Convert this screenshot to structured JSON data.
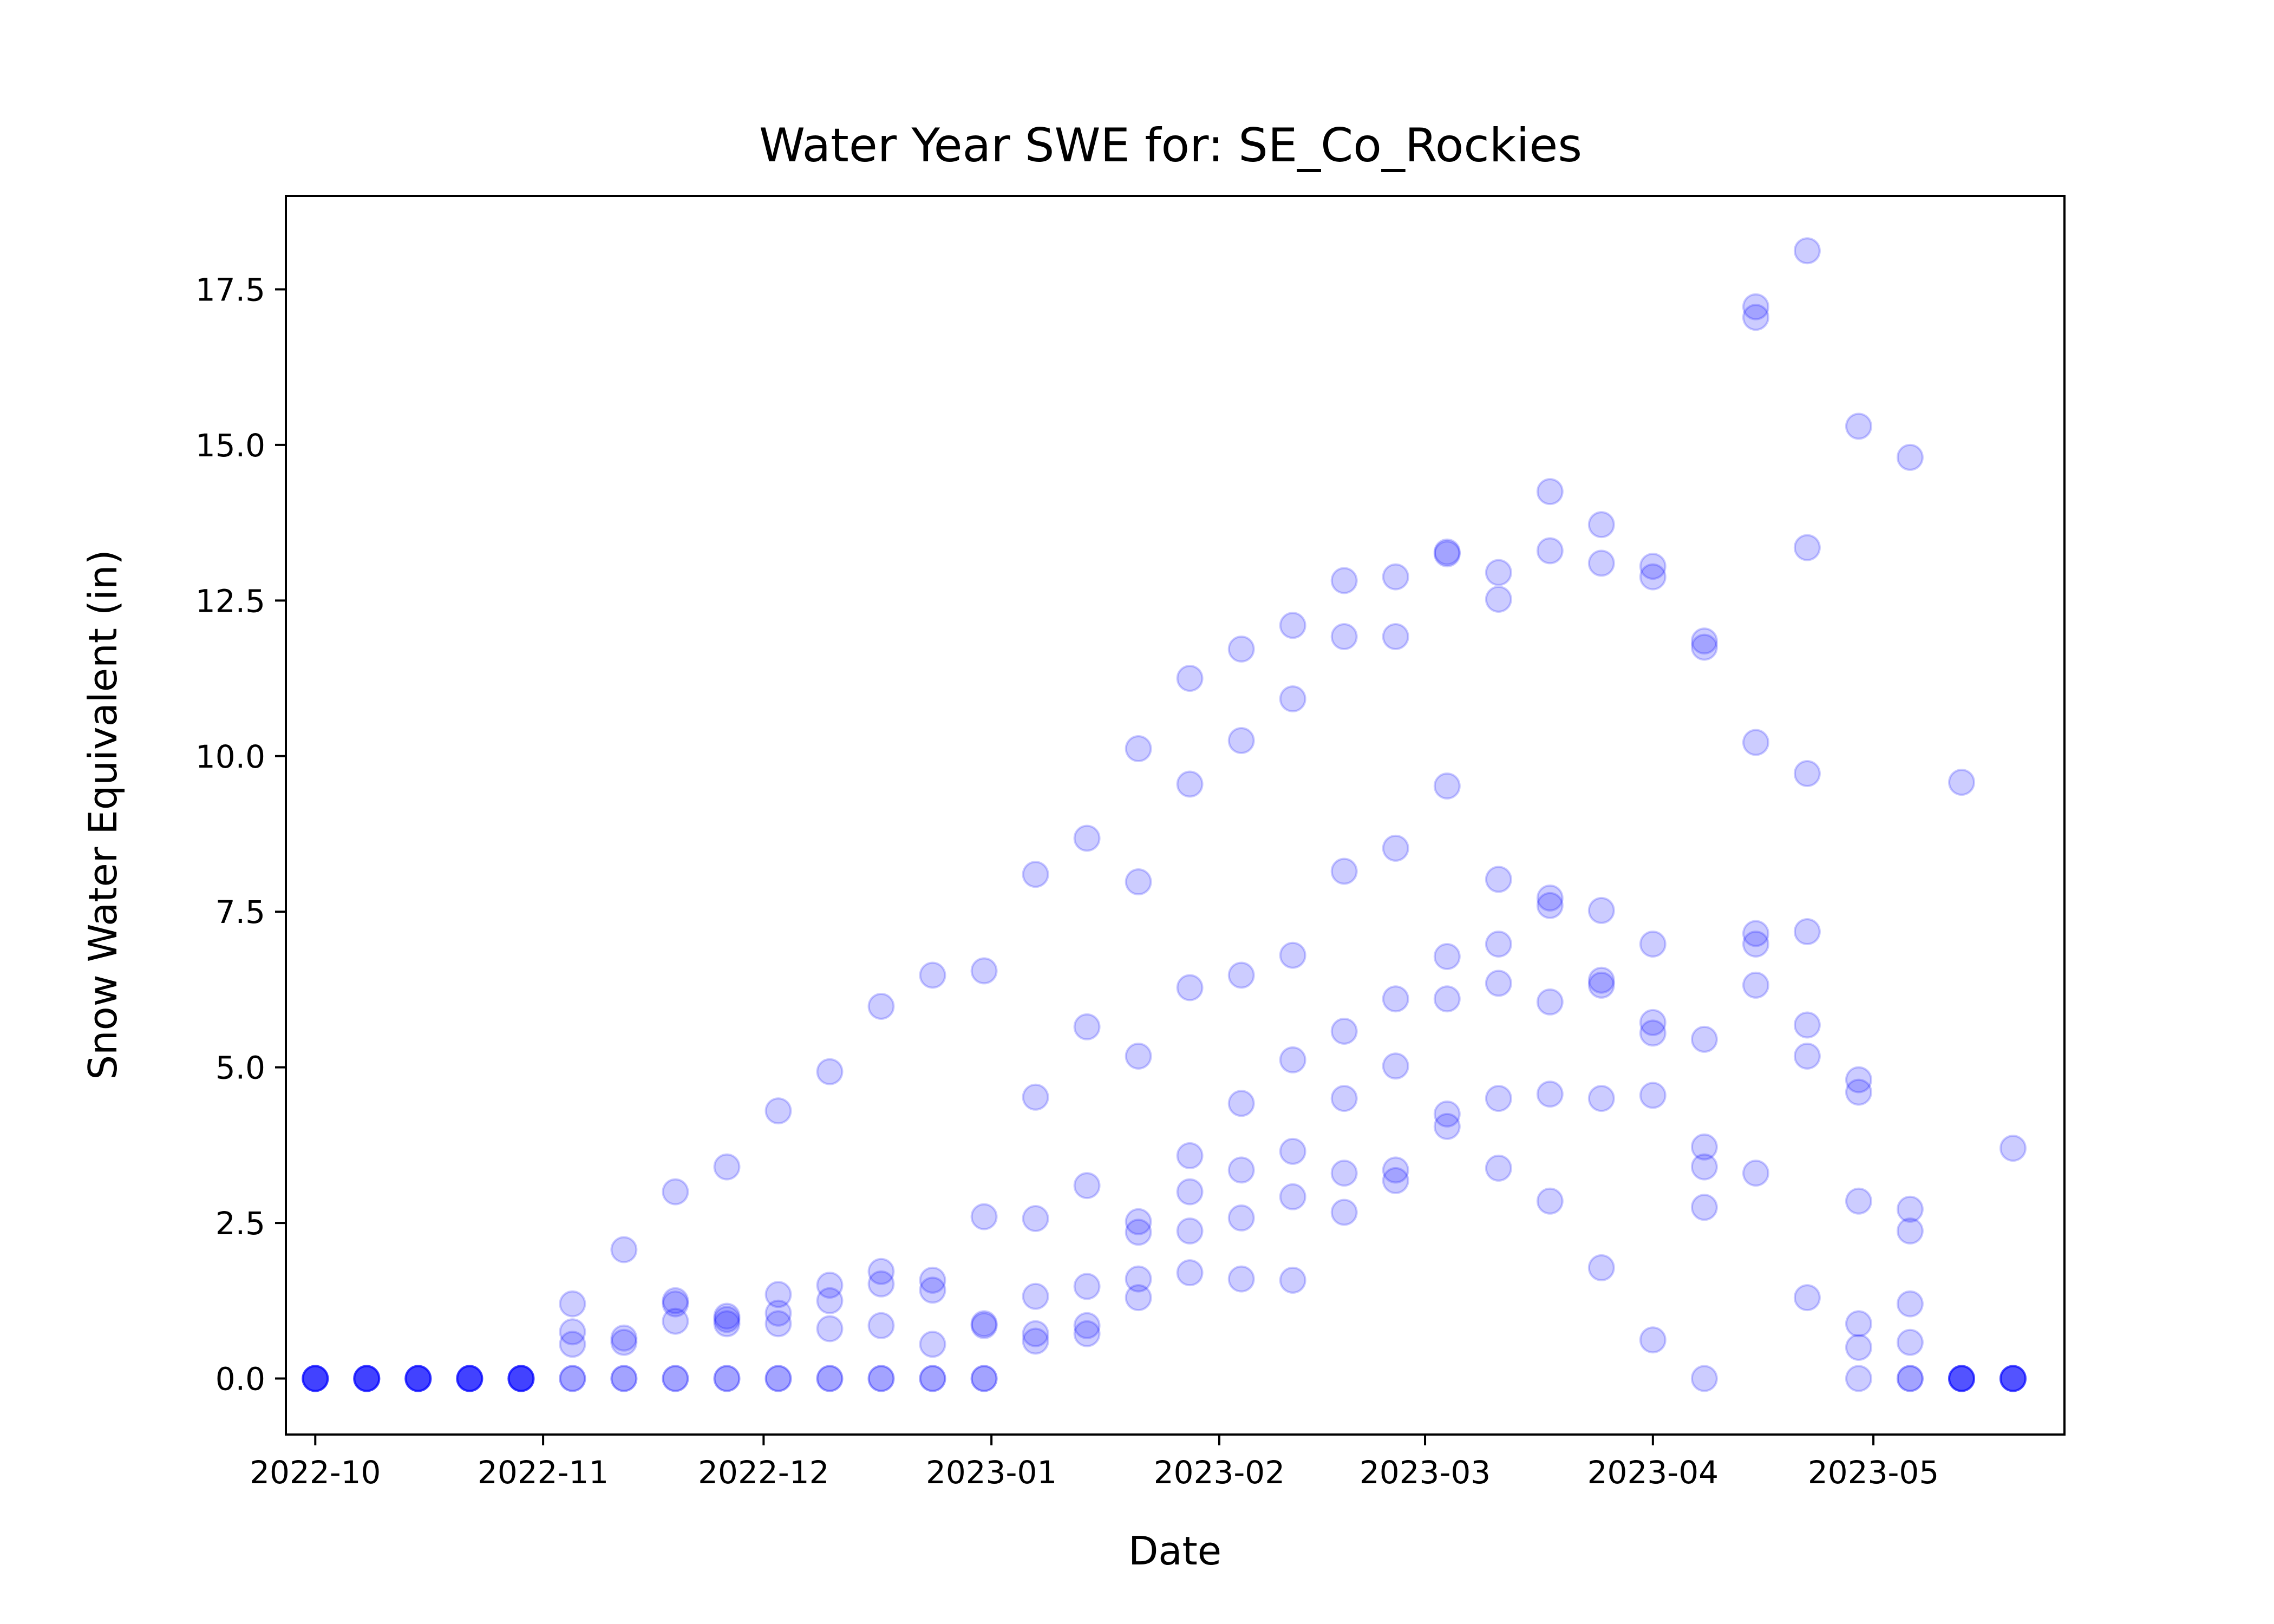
{
  "chart_data": {
    "type": "scatter",
    "title": "Water Year SWE for: SE_Co_Rockies",
    "xlabel": "Date",
    "ylabel": "Snow Water Equivalent (in)",
    "x_type": "date",
    "xlim": [
      "2022-09-27",
      "2023-05-27"
    ],
    "ylim": [
      -0.9,
      19.0
    ],
    "x_ticks": [
      "2022-10-01",
      "2022-11-01",
      "2022-12-01",
      "2023-01-01",
      "2023-02-01",
      "2023-03-01",
      "2023-04-01",
      "2023-05-01"
    ],
    "x_tick_labels": [
      "2022-10",
      "2022-11",
      "2022-12",
      "2023-01",
      "2023-02",
      "2023-03",
      "2023-04",
      "2023-05"
    ],
    "y_ticks": [
      0.0,
      2.5,
      5.0,
      7.5,
      10.0,
      12.5,
      15.0,
      17.5
    ],
    "y_tick_labels": [
      "0.0",
      "2.5",
      "5.0",
      "7.5",
      "10.0",
      "12.5",
      "15.0",
      "17.5"
    ],
    "grid": false,
    "marker_color": "#0000ff",
    "marker_alpha": 0.2,
    "points": [
      {
        "x": "2022-10-01",
        "y": 0.0
      },
      {
        "x": "2022-10-01",
        "y": 0.0
      },
      {
        "x": "2022-10-01",
        "y": 0.0
      },
      {
        "x": "2022-10-01",
        "y": 0.0
      },
      {
        "x": "2022-10-01",
        "y": 0.0
      },
      {
        "x": "2022-10-01",
        "y": 0.0
      },
      {
        "x": "2022-10-08",
        "y": 0.0
      },
      {
        "x": "2022-10-08",
        "y": 0.0
      },
      {
        "x": "2022-10-08",
        "y": 0.0
      },
      {
        "x": "2022-10-08",
        "y": 0.0
      },
      {
        "x": "2022-10-08",
        "y": 0.0
      },
      {
        "x": "2022-10-08",
        "y": 0.0
      },
      {
        "x": "2022-10-15",
        "y": 0.0
      },
      {
        "x": "2022-10-15",
        "y": 0.0
      },
      {
        "x": "2022-10-15",
        "y": 0.0
      },
      {
        "x": "2022-10-15",
        "y": 0.0
      },
      {
        "x": "2022-10-15",
        "y": 0.0
      },
      {
        "x": "2022-10-15",
        "y": 0.0
      },
      {
        "x": "2022-10-22",
        "y": 0.0
      },
      {
        "x": "2022-10-22",
        "y": 0.0
      },
      {
        "x": "2022-10-22",
        "y": 0.0
      },
      {
        "x": "2022-10-22",
        "y": 0.0
      },
      {
        "x": "2022-10-22",
        "y": 0.0
      },
      {
        "x": "2022-10-22",
        "y": 0.0
      },
      {
        "x": "2022-10-29",
        "y": 0.0
      },
      {
        "x": "2022-10-29",
        "y": 0.0
      },
      {
        "x": "2022-10-29",
        "y": 0.0
      },
      {
        "x": "2022-10-29",
        "y": 0.0
      },
      {
        "x": "2022-10-29",
        "y": 0.0
      },
      {
        "x": "2022-10-29",
        "y": 0.0
      },
      {
        "x": "2022-11-05",
        "y": 1.2
      },
      {
        "x": "2022-11-05",
        "y": 0.75
      },
      {
        "x": "2022-11-05",
        "y": 0.55
      },
      {
        "x": "2022-11-05",
        "y": 0.0
      },
      {
        "x": "2022-11-05",
        "y": 0.0
      },
      {
        "x": "2022-11-12",
        "y": 2.07
      },
      {
        "x": "2022-11-12",
        "y": 0.65
      },
      {
        "x": "2022-11-12",
        "y": 0.58
      },
      {
        "x": "2022-11-12",
        "y": 0.0
      },
      {
        "x": "2022-11-12",
        "y": 0.0
      },
      {
        "x": "2022-11-19",
        "y": 3.0
      },
      {
        "x": "2022-11-19",
        "y": 1.25
      },
      {
        "x": "2022-11-19",
        "y": 1.2
      },
      {
        "x": "2022-11-19",
        "y": 0.92
      },
      {
        "x": "2022-11-19",
        "y": 0.0
      },
      {
        "x": "2022-11-19",
        "y": 0.0
      },
      {
        "x": "2022-11-26",
        "y": 3.4
      },
      {
        "x": "2022-11-26",
        "y": 1.0
      },
      {
        "x": "2022-11-26",
        "y": 0.95
      },
      {
        "x": "2022-11-26",
        "y": 0.88
      },
      {
        "x": "2022-11-26",
        "y": 0.0
      },
      {
        "x": "2022-11-26",
        "y": 0.0
      },
      {
        "x": "2022-12-03",
        "y": 4.3
      },
      {
        "x": "2022-12-03",
        "y": 1.35
      },
      {
        "x": "2022-12-03",
        "y": 1.05
      },
      {
        "x": "2022-12-03",
        "y": 0.88
      },
      {
        "x": "2022-12-03",
        "y": 0.0
      },
      {
        "x": "2022-12-03",
        "y": 0.0
      },
      {
        "x": "2022-12-10",
        "y": 4.93
      },
      {
        "x": "2022-12-10",
        "y": 1.5
      },
      {
        "x": "2022-12-10",
        "y": 1.25
      },
      {
        "x": "2022-12-10",
        "y": 0.8
      },
      {
        "x": "2022-12-10",
        "y": 0.0
      },
      {
        "x": "2022-12-10",
        "y": 0.0
      },
      {
        "x": "2022-12-17",
        "y": 5.98
      },
      {
        "x": "2022-12-17",
        "y": 1.72
      },
      {
        "x": "2022-12-17",
        "y": 1.52
      },
      {
        "x": "2022-12-17",
        "y": 0.85
      },
      {
        "x": "2022-12-17",
        "y": 0.0
      },
      {
        "x": "2022-12-17",
        "y": 0.0
      },
      {
        "x": "2022-12-24",
        "y": 6.48
      },
      {
        "x": "2022-12-24",
        "y": 1.58
      },
      {
        "x": "2022-12-24",
        "y": 1.42
      },
      {
        "x": "2022-12-24",
        "y": 0.55
      },
      {
        "x": "2022-12-24",
        "y": 0.0
      },
      {
        "x": "2022-12-24",
        "y": 0.0
      },
      {
        "x": "2022-12-31",
        "y": 6.55
      },
      {
        "x": "2022-12-31",
        "y": 2.6
      },
      {
        "x": "2022-12-31",
        "y": 0.88
      },
      {
        "x": "2022-12-31",
        "y": 0.85
      },
      {
        "x": "2022-12-31",
        "y": 0.0
      },
      {
        "x": "2022-12-31",
        "y": 0.0
      },
      {
        "x": "2023-01-07",
        "y": 8.1
      },
      {
        "x": "2023-01-07",
        "y": 4.52
      },
      {
        "x": "2023-01-07",
        "y": 2.57
      },
      {
        "x": "2023-01-07",
        "y": 1.32
      },
      {
        "x": "2023-01-07",
        "y": 0.72
      },
      {
        "x": "2023-01-07",
        "y": 0.6
      },
      {
        "x": "2023-01-14",
        "y": 8.68
      },
      {
        "x": "2023-01-14",
        "y": 5.65
      },
      {
        "x": "2023-01-14",
        "y": 3.1
      },
      {
        "x": "2023-01-14",
        "y": 1.48
      },
      {
        "x": "2023-01-14",
        "y": 0.85
      },
      {
        "x": "2023-01-14",
        "y": 0.72
      },
      {
        "x": "2023-01-21",
        "y": 10.12
      },
      {
        "x": "2023-01-21",
        "y": 7.98
      },
      {
        "x": "2023-01-21",
        "y": 5.18
      },
      {
        "x": "2023-01-21",
        "y": 2.52
      },
      {
        "x": "2023-01-21",
        "y": 2.35
      },
      {
        "x": "2023-01-21",
        "y": 1.6
      },
      {
        "x": "2023-01-21",
        "y": 1.3
      },
      {
        "x": "2023-01-28",
        "y": 11.25
      },
      {
        "x": "2023-01-28",
        "y": 9.55
      },
      {
        "x": "2023-01-28",
        "y": 6.28
      },
      {
        "x": "2023-01-28",
        "y": 3.58
      },
      {
        "x": "2023-01-28",
        "y": 3.0
      },
      {
        "x": "2023-01-28",
        "y": 2.37
      },
      {
        "x": "2023-01-28",
        "y": 1.7
      },
      {
        "x": "2023-02-04",
        "y": 11.72
      },
      {
        "x": "2023-02-04",
        "y": 10.25
      },
      {
        "x": "2023-02-04",
        "y": 6.48
      },
      {
        "x": "2023-02-04",
        "y": 4.42
      },
      {
        "x": "2023-02-04",
        "y": 3.35
      },
      {
        "x": "2023-02-04",
        "y": 2.58
      },
      {
        "x": "2023-02-04",
        "y": 1.6
      },
      {
        "x": "2023-02-11",
        "y": 12.1
      },
      {
        "x": "2023-02-11",
        "y": 10.92
      },
      {
        "x": "2023-02-11",
        "y": 6.8
      },
      {
        "x": "2023-02-11",
        "y": 5.12
      },
      {
        "x": "2023-02-11",
        "y": 3.65
      },
      {
        "x": "2023-02-11",
        "y": 2.92
      },
      {
        "x": "2023-02-11",
        "y": 1.58
      },
      {
        "x": "2023-02-18",
        "y": 12.82
      },
      {
        "x": "2023-02-18",
        "y": 11.92
      },
      {
        "x": "2023-02-18",
        "y": 8.15
      },
      {
        "x": "2023-02-18",
        "y": 5.58
      },
      {
        "x": "2023-02-18",
        "y": 4.5
      },
      {
        "x": "2023-02-18",
        "y": 3.3
      },
      {
        "x": "2023-02-18",
        "y": 2.67
      },
      {
        "x": "2023-02-25",
        "y": 12.88
      },
      {
        "x": "2023-02-25",
        "y": 11.92
      },
      {
        "x": "2023-02-25",
        "y": 8.52
      },
      {
        "x": "2023-02-25",
        "y": 6.1
      },
      {
        "x": "2023-02-25",
        "y": 5.02
      },
      {
        "x": "2023-02-25",
        "y": 3.35
      },
      {
        "x": "2023-02-25",
        "y": 3.18
      },
      {
        "x": "2023-03-04",
        "y": 13.28
      },
      {
        "x": "2023-03-04",
        "y": 13.25
      },
      {
        "x": "2023-03-04",
        "y": 9.52
      },
      {
        "x": "2023-03-04",
        "y": 6.78
      },
      {
        "x": "2023-03-04",
        "y": 6.1
      },
      {
        "x": "2023-03-04",
        "y": 4.25
      },
      {
        "x": "2023-03-04",
        "y": 4.05
      },
      {
        "x": "2023-03-11",
        "y": 12.95
      },
      {
        "x": "2023-03-11",
        "y": 12.52
      },
      {
        "x": "2023-03-11",
        "y": 8.02
      },
      {
        "x": "2023-03-11",
        "y": 6.98
      },
      {
        "x": "2023-03-11",
        "y": 6.35
      },
      {
        "x": "2023-03-11",
        "y": 4.5
      },
      {
        "x": "2023-03-11",
        "y": 3.38
      },
      {
        "x": "2023-03-18",
        "y": 14.25
      },
      {
        "x": "2023-03-18",
        "y": 13.3
      },
      {
        "x": "2023-03-18",
        "y": 7.72
      },
      {
        "x": "2023-03-18",
        "y": 7.6
      },
      {
        "x": "2023-03-18",
        "y": 6.05
      },
      {
        "x": "2023-03-18",
        "y": 4.57
      },
      {
        "x": "2023-03-18",
        "y": 2.85
      },
      {
        "x": "2023-03-25",
        "y": 13.72
      },
      {
        "x": "2023-03-25",
        "y": 13.1
      },
      {
        "x": "2023-03-25",
        "y": 7.52
      },
      {
        "x": "2023-03-25",
        "y": 6.4
      },
      {
        "x": "2023-03-25",
        "y": 6.32
      },
      {
        "x": "2023-03-25",
        "y": 4.5
      },
      {
        "x": "2023-03-25",
        "y": 1.78
      },
      {
        "x": "2023-04-01",
        "y": 13.05
      },
      {
        "x": "2023-04-01",
        "y": 12.88
      },
      {
        "x": "2023-04-01",
        "y": 6.98
      },
      {
        "x": "2023-04-01",
        "y": 5.72
      },
      {
        "x": "2023-04-01",
        "y": 5.55
      },
      {
        "x": "2023-04-01",
        "y": 4.55
      },
      {
        "x": "2023-04-01",
        "y": 0.62
      },
      {
        "x": "2023-04-08",
        "y": 11.85
      },
      {
        "x": "2023-04-08",
        "y": 11.75
      },
      {
        "x": "2023-04-08",
        "y": 5.45
      },
      {
        "x": "2023-04-08",
        "y": 3.72
      },
      {
        "x": "2023-04-08",
        "y": 3.4
      },
      {
        "x": "2023-04-08",
        "y": 2.75
      },
      {
        "x": "2023-04-08",
        "y": 0.0
      },
      {
        "x": "2023-04-15",
        "y": 17.22
      },
      {
        "x": "2023-04-15",
        "y": 17.05
      },
      {
        "x": "2023-04-15",
        "y": 10.22
      },
      {
        "x": "2023-04-15",
        "y": 7.15
      },
      {
        "x": "2023-04-15",
        "y": 6.98
      },
      {
        "x": "2023-04-15",
        "y": 6.32
      },
      {
        "x": "2023-04-15",
        "y": 3.3
      },
      {
        "x": "2023-04-22",
        "y": 18.12
      },
      {
        "x": "2023-04-22",
        "y": 13.35
      },
      {
        "x": "2023-04-22",
        "y": 9.72
      },
      {
        "x": "2023-04-22",
        "y": 7.18
      },
      {
        "x": "2023-04-22",
        "y": 5.68
      },
      {
        "x": "2023-04-22",
        "y": 5.18
      },
      {
        "x": "2023-04-22",
        "y": 1.3
      },
      {
        "x": "2023-04-29",
        "y": 15.3
      },
      {
        "x": "2023-04-29",
        "y": 4.8
      },
      {
        "x": "2023-04-29",
        "y": 4.6
      },
      {
        "x": "2023-04-29",
        "y": 2.85
      },
      {
        "x": "2023-04-29",
        "y": 0.88
      },
      {
        "x": "2023-04-29",
        "y": 0.5
      },
      {
        "x": "2023-04-29",
        "y": 0.0
      },
      {
        "x": "2023-05-06",
        "y": 14.8
      },
      {
        "x": "2023-05-06",
        "y": 2.72
      },
      {
        "x": "2023-05-06",
        "y": 2.37
      },
      {
        "x": "2023-05-06",
        "y": 1.2
      },
      {
        "x": "2023-05-06",
        "y": 0.58
      },
      {
        "x": "2023-05-06",
        "y": 0.0
      },
      {
        "x": "2023-05-06",
        "y": 0.0
      },
      {
        "x": "2023-05-13",
        "y": 9.58
      },
      {
        "x": "2023-05-13",
        "y": 0.0
      },
      {
        "x": "2023-05-13",
        "y": 0.0
      },
      {
        "x": "2023-05-13",
        "y": 0.0
      },
      {
        "x": "2023-05-13",
        "y": 0.0
      },
      {
        "x": "2023-05-13",
        "y": 0.0
      },
      {
        "x": "2023-05-20",
        "y": 3.7
      },
      {
        "x": "2023-05-20",
        "y": 0.0
      },
      {
        "x": "2023-05-20",
        "y": 0.0
      },
      {
        "x": "2023-05-20",
        "y": 0.0
      },
      {
        "x": "2023-05-20",
        "y": 0.0
      },
      {
        "x": "2023-05-20",
        "y": 0.0
      }
    ]
  }
}
